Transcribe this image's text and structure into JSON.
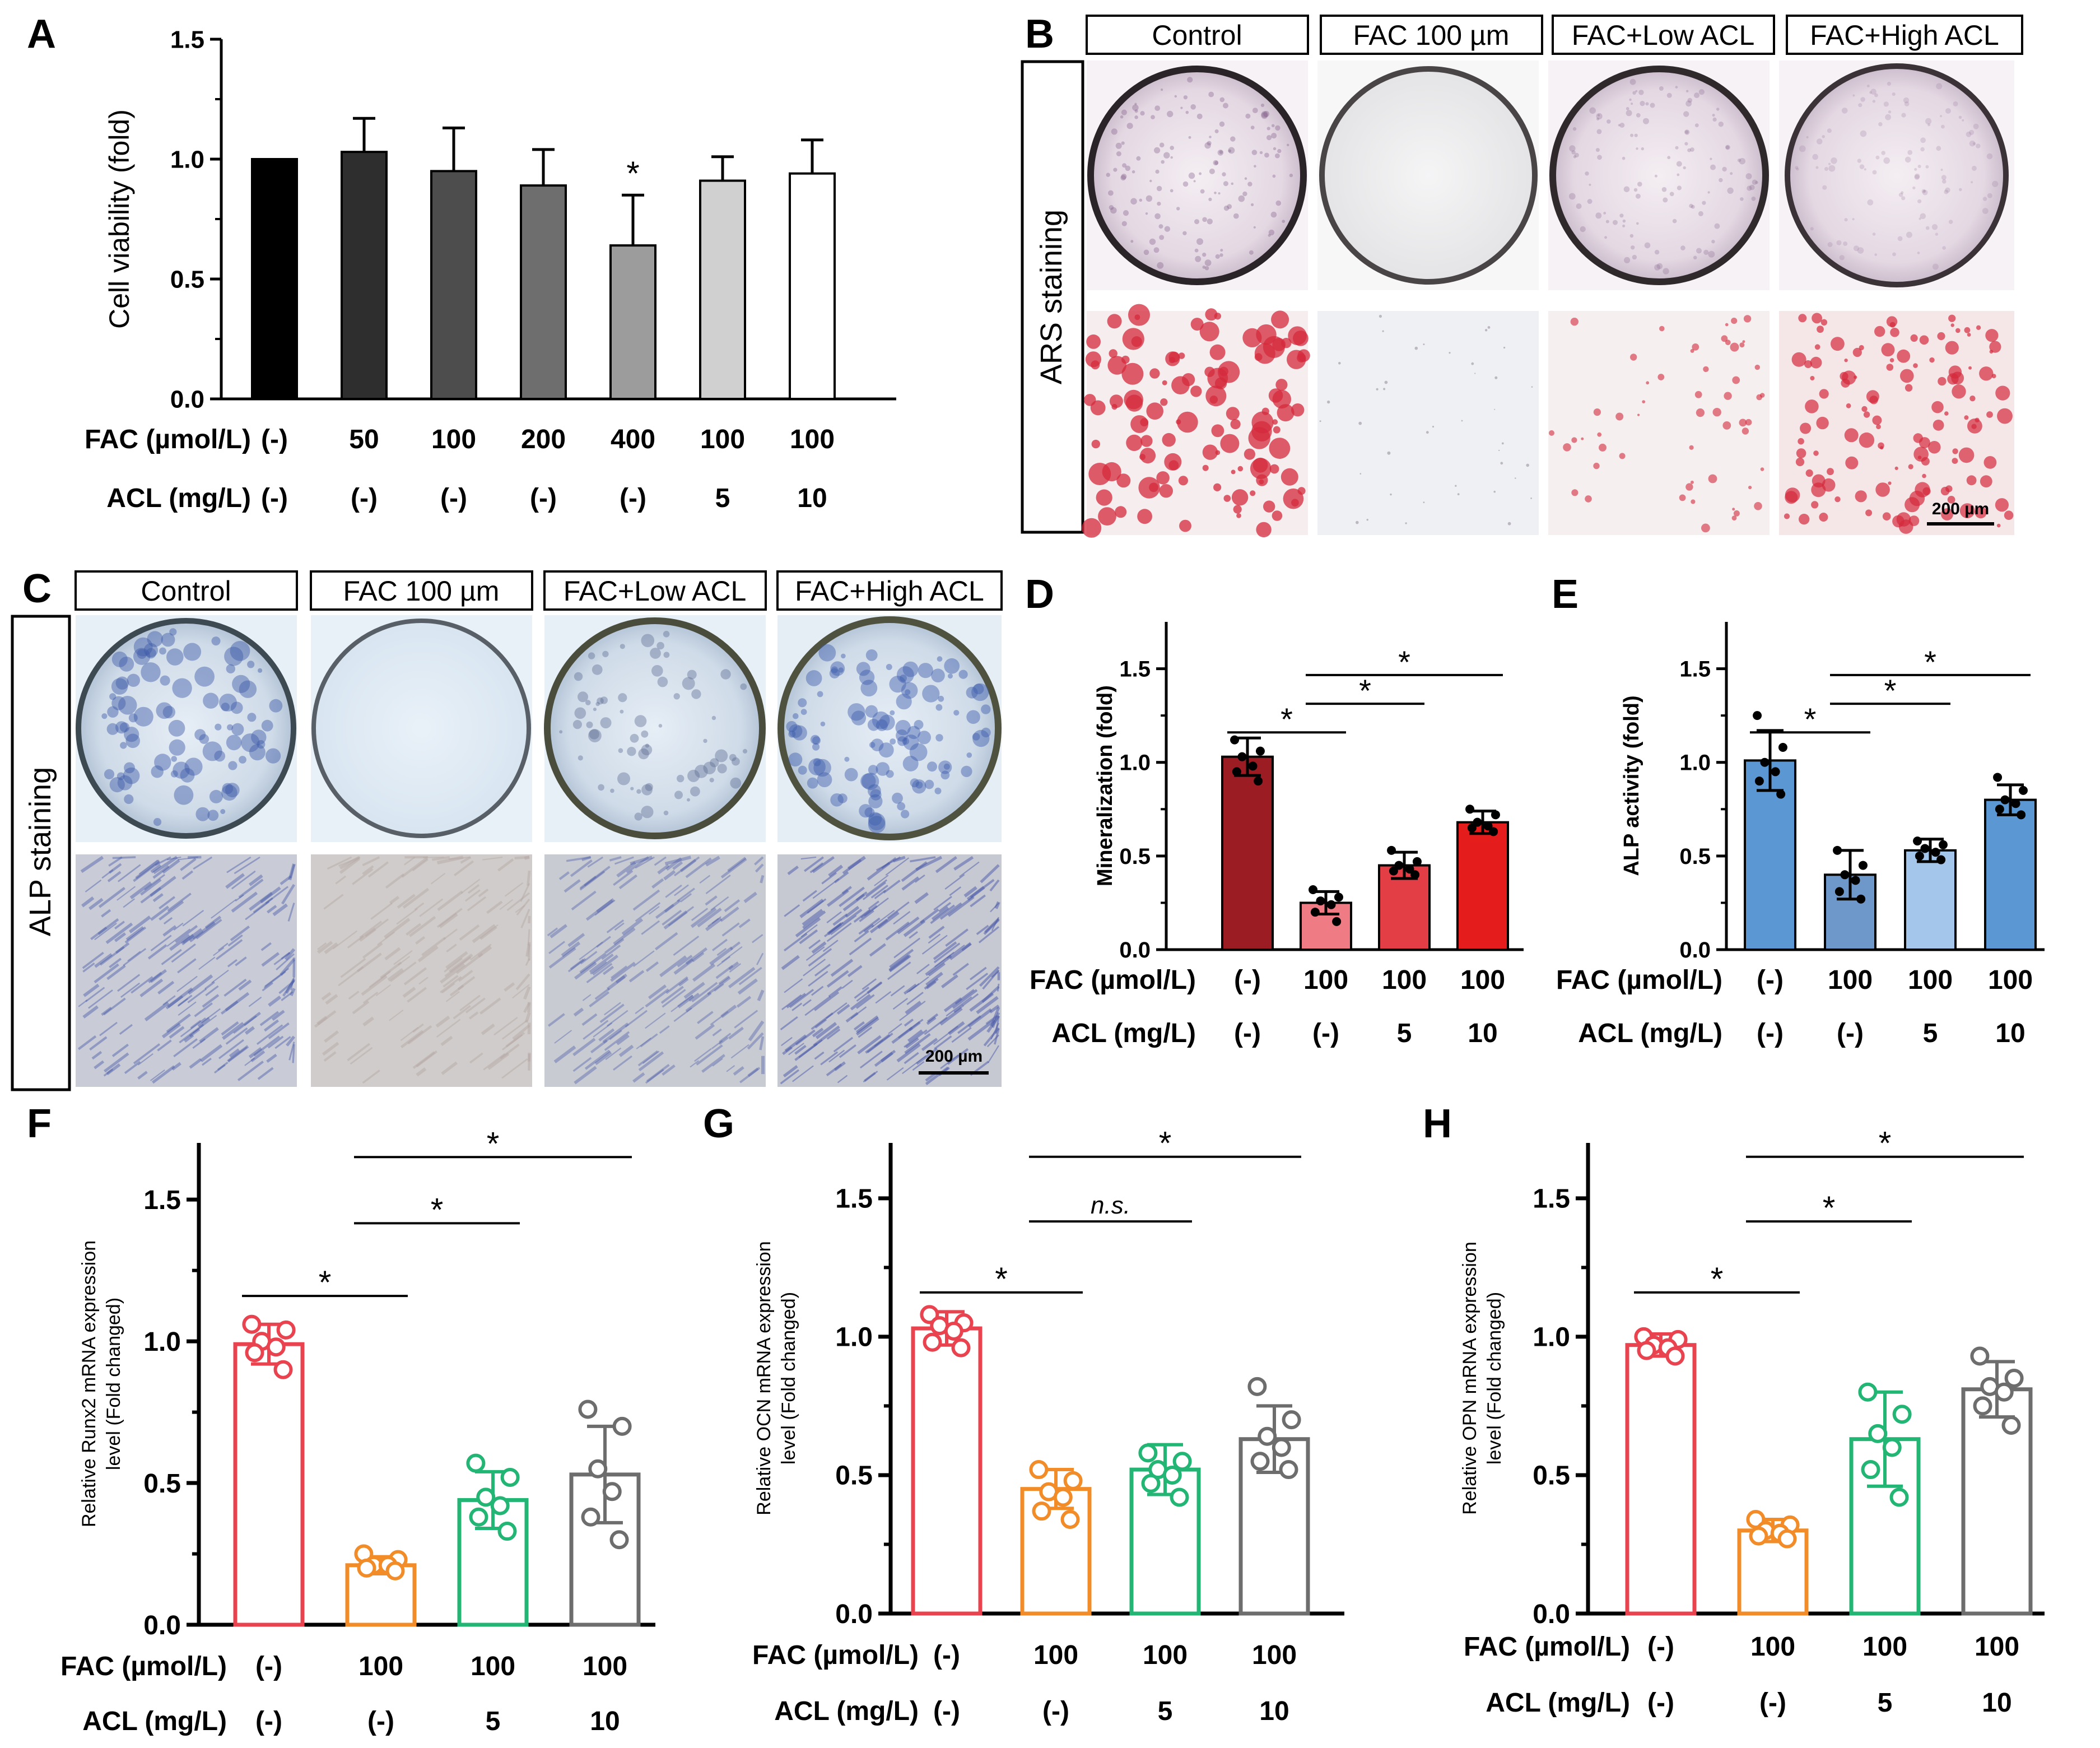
{
  "figure": {
    "panel_letters": [
      "A",
      "B",
      "C",
      "D",
      "E",
      "F",
      "G",
      "H"
    ],
    "image_panels": {
      "B": {
        "column_labels": [
          "Control",
          "FAC 100 µm",
          "FAC+Low ACL",
          "FAC+High ACL"
        ],
        "row_label": "ARS staining",
        "scale_bar": "200 µm",
        "stain_color": "#d42a3c"
      },
      "C": {
        "column_labels": [
          "Control",
          "FAC 100 µm",
          "FAC+Low ACL",
          "FAC+High ACL"
        ],
        "row_label": "ALP staining",
        "scale_bar": "200 µm",
        "stain_color": "#4a5aa8"
      }
    }
  },
  "chart_data": [
    {
      "panel": "A",
      "type": "bar",
      "ylabel": "Cell viability (fold)",
      "ylim": [
        0,
        1.5
      ],
      "yticks": [
        "0.0",
        "0.5",
        "1.0",
        "1.5"
      ],
      "row_headers": [
        "FAC (µmol/L)",
        "ACL (mg/L)"
      ],
      "rows": [
        [
          "(-)",
          "50",
          "100",
          "200",
          "400",
          "100",
          "100"
        ],
        [
          "(-)",
          "(-)",
          "(-)",
          "(-)",
          "(-)",
          "5",
          "10"
        ]
      ],
      "values": [
        1.0,
        1.03,
        0.95,
        0.89,
        0.64,
        0.91,
        0.94
      ],
      "errors": [
        0,
        0.14,
        0.18,
        0.15,
        0.21,
        0.1,
        0.14
      ],
      "colors": [
        "#000000",
        "#2e2e2e",
        "#4d4d4d",
        "#6e6e6e",
        "#9c9c9c",
        "#d0d0d0",
        "#ffffff"
      ],
      "significance": [
        {
          "bar": 4,
          "label": "*"
        }
      ]
    },
    {
      "panel": "D",
      "type": "bar",
      "ylabel": "Mineralization (fold)",
      "ylim": [
        0,
        1.75
      ],
      "yticks": [
        "0.0",
        "0.5",
        "1.0",
        "1.5"
      ],
      "row_headers": [
        "FAC (µmol/L)",
        "ACL (mg/L)"
      ],
      "rows": [
        [
          "(-)",
          "100",
          "100",
          "100"
        ],
        [
          "(-)",
          "(-)",
          "5",
          "10"
        ]
      ],
      "values": [
        1.03,
        0.25,
        0.45,
        0.68
      ],
      "errors": [
        0.1,
        0.06,
        0.07,
        0.06
      ],
      "colors": [
        "#9c1c24",
        "#ef7b84",
        "#e33e46",
        "#e41c1c"
      ],
      "points": [
        [
          1.12,
          1.06,
          1.03,
          0.98,
          0.95,
          0.9
        ],
        [
          0.32,
          0.28,
          0.26,
          0.24,
          0.2,
          0.15
        ],
        [
          0.53,
          0.47,
          0.45,
          0.43,
          0.42,
          0.4
        ],
        [
          0.75,
          0.72,
          0.68,
          0.66,
          0.65,
          0.63
        ]
      ],
      "brackets": [
        {
          "from": 0,
          "to": 1,
          "label": "*"
        },
        {
          "from": 1,
          "to": 2,
          "label": "*"
        },
        {
          "from": 1,
          "to": 3,
          "label": "*"
        }
      ]
    },
    {
      "panel": "E",
      "type": "bar",
      "ylabel": "ALP activity (fold)",
      "ylim": [
        0,
        1.75
      ],
      "yticks": [
        "0.0",
        "0.5",
        "1.0",
        "1.5"
      ],
      "row_headers": [
        "FAC (µmol/L)",
        "ACL (mg/L)"
      ],
      "rows": [
        [
          "(-)",
          "100",
          "100",
          "100"
        ],
        [
          "(-)",
          "(-)",
          "5",
          "10"
        ]
      ],
      "values": [
        1.01,
        0.4,
        0.53,
        0.8
      ],
      "errors": [
        0.16,
        0.13,
        0.06,
        0.08
      ],
      "colors": [
        "#5b97d2",
        "#6f98ca",
        "#a3c6ea",
        "#5b97d2"
      ],
      "points": [
        [
          1.25,
          1.08,
          1.0,
          0.95,
          0.9,
          0.83
        ],
        [
          0.53,
          0.45,
          0.4,
          0.37,
          0.31,
          0.27
        ],
        [
          0.58,
          0.56,
          0.54,
          0.52,
          0.5,
          0.48
        ],
        [
          0.92,
          0.85,
          0.8,
          0.78,
          0.75,
          0.72
        ]
      ],
      "brackets": [
        {
          "from": 0,
          "to": 1,
          "label": "*"
        },
        {
          "from": 1,
          "to": 2,
          "label": "*"
        },
        {
          "from": 1,
          "to": 3,
          "label": "*"
        }
      ]
    },
    {
      "panel": "F",
      "type": "bar",
      "ylabel_lines": [
        "Relative Runx2 mRNA expression",
        "level (Fold changed)"
      ],
      "ylim": [
        0,
        1.7
      ],
      "yticks": [
        "0.0",
        "0.5",
        "1.0",
        "1.5"
      ],
      "row_headers": [
        "FAC (µmol/L)",
        "ACL (mg/L)"
      ],
      "rows": [
        [
          "(-)",
          "100",
          "100",
          "100"
        ],
        [
          "(-)",
          "(-)",
          "5",
          "10"
        ]
      ],
      "values": [
        0.99,
        0.21,
        0.44,
        0.53
      ],
      "errors": [
        0.07,
        0.03,
        0.1,
        0.17
      ],
      "colors": [
        "#e8434f",
        "#f28c28",
        "#22b573",
        "#6d6d6d"
      ],
      "points": [
        [
          1.06,
          1.04,
          1.0,
          0.98,
          0.96,
          0.9
        ],
        [
          0.25,
          0.23,
          0.21,
          0.21,
          0.2,
          0.19
        ],
        [
          0.57,
          0.52,
          0.45,
          0.42,
          0.38,
          0.33
        ],
        [
          0.76,
          0.7,
          0.55,
          0.47,
          0.38,
          0.3
        ]
      ],
      "brackets": [
        {
          "from": 0,
          "to": 1,
          "label": "*"
        },
        {
          "from": 1,
          "to": 2,
          "label": "*"
        },
        {
          "from": 1,
          "to": 3,
          "label": "*"
        }
      ]
    },
    {
      "panel": "G",
      "type": "bar",
      "ylabel_lines": [
        "Relative OCN mRNA expression",
        "level (Fold changed)"
      ],
      "ylim": [
        0,
        1.7
      ],
      "yticks": [
        "0.0",
        "0.5",
        "1.0",
        "1.5"
      ],
      "row_headers": [
        "FAC (µmol/L)",
        "ACL (mg/L)"
      ],
      "rows": [
        [
          "(-)",
          "100",
          "100",
          "100"
        ],
        [
          "(-)",
          "(-)",
          "5",
          "10"
        ]
      ],
      "values": [
        1.03,
        0.45,
        0.52,
        0.63
      ],
      "errors": [
        0.06,
        0.07,
        0.09,
        0.12
      ],
      "colors": [
        "#e8434f",
        "#f28c28",
        "#22b573",
        "#6d6d6d"
      ],
      "points": [
        [
          1.08,
          1.05,
          1.04,
          1.02,
          0.98,
          0.96
        ],
        [
          0.52,
          0.48,
          0.44,
          0.42,
          0.37,
          0.34
        ],
        [
          0.58,
          0.55,
          0.52,
          0.5,
          0.47,
          0.42
        ],
        [
          0.82,
          0.7,
          0.64,
          0.6,
          0.55,
          0.52
        ]
      ],
      "brackets": [
        {
          "from": 0,
          "to": 1,
          "label": "*"
        },
        {
          "from": 1,
          "to": 2,
          "label": "n.s."
        },
        {
          "from": 1,
          "to": 3,
          "label": "*"
        }
      ]
    },
    {
      "panel": "H",
      "type": "bar",
      "ylabel_lines": [
        "Relative OPN mRNA expression",
        "level (Fold changed)"
      ],
      "ylim": [
        0,
        1.7
      ],
      "yticks": [
        "0.0",
        "0.5",
        "1.0",
        "1.5"
      ],
      "row_headers": [
        "FAC (µmol/L)",
        "ACL (mg/L)"
      ],
      "rows": [
        [
          "(-)",
          "100",
          "100",
          "100"
        ],
        [
          "(-)",
          "(-)",
          "5",
          "10"
        ]
      ],
      "values": [
        0.97,
        0.3,
        0.63,
        0.81
      ],
      "errors": [
        0.04,
        0.04,
        0.17,
        0.1
      ],
      "colors": [
        "#e8434f",
        "#f28c28",
        "#22b573",
        "#6d6d6d"
      ],
      "points": [
        [
          1.0,
          0.99,
          0.97,
          0.96,
          0.95,
          0.93
        ],
        [
          0.34,
          0.32,
          0.3,
          0.29,
          0.28,
          0.27
        ],
        [
          0.8,
          0.72,
          0.65,
          0.6,
          0.52,
          0.42
        ],
        [
          0.93,
          0.85,
          0.82,
          0.8,
          0.75,
          0.68
        ]
      ],
      "brackets": [
        {
          "from": 0,
          "to": 1,
          "label": "*"
        },
        {
          "from": 1,
          "to": 2,
          "label": "*"
        },
        {
          "from": 1,
          "to": 3,
          "label": "*"
        }
      ]
    }
  ]
}
